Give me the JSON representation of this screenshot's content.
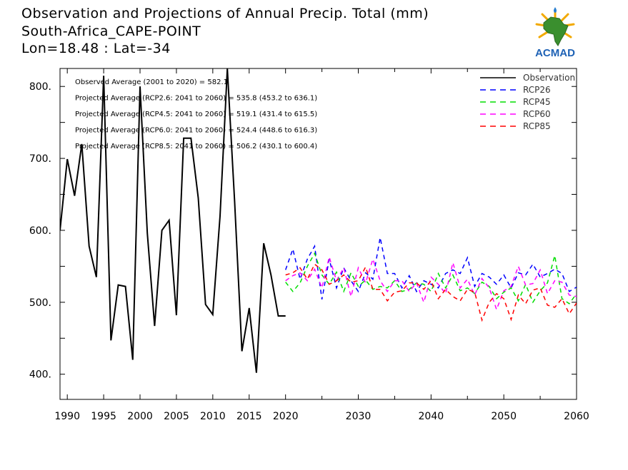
{
  "header": {
    "title": "Observation and Projections of Annual Precip. Total (mm)",
    "station": "South-Africa_CAPE-POINT",
    "location": "Lon=18.48 : Lat=-34"
  },
  "logo": {
    "text": "ACMAD"
  },
  "chart_data": {
    "type": "line",
    "title": "Observation and Projections of Annual Precip. Total (mm)",
    "xlabel": "",
    "ylabel": "",
    "xlim": [
      1989,
      2060
    ],
    "ylim": [
      365,
      825
    ],
    "x_ticks": [
      {
        "value": 1990,
        "label": "1990"
      },
      {
        "value": 1995,
        "label": "1995"
      },
      {
        "value": 2000,
        "label": "2000"
      },
      {
        "value": 2005,
        "label": "2005"
      },
      {
        "value": 2010,
        "label": "2010"
      },
      {
        "value": 2015,
        "label": "2015"
      },
      {
        "value": 2020,
        "label": "2020"
      },
      {
        "value": 2030,
        "label": "2030"
      },
      {
        "value": 2040,
        "label": "2040"
      },
      {
        "value": 2050,
        "label": "2050"
      },
      {
        "value": 2060,
        "label": "2060"
      }
    ],
    "y_ticks": [
      {
        "value": 400,
        "label": "400."
      },
      {
        "value": 500,
        "label": "500."
      },
      {
        "value": 600,
        "label": "600."
      },
      {
        "value": 700,
        "label": "700."
      },
      {
        "value": 800,
        "label": "800."
      }
    ],
    "legend_position": "top-right",
    "annotations": [
      "Observed Average (2001 to 2020) = 582.1",
      "Projected Average (RCP2.6: 2041 to 2060) = 535.8 (453.2 to 636.1)",
      "Projected Average (RCP4.5: 2041 to 2060) = 519.1 (431.4 to 615.5)",
      "Projected Average (RCP6.0: 2041 to 2060) = 524.4 (448.6 to 616.3)",
      "Projected Average (RCP8.5: 2041 to 2060) = 506.2 (430.1 to 600.4)"
    ],
    "series": [
      {
        "name": "Observation",
        "color": "#000000",
        "dashed": false,
        "x": [
          1989,
          1990,
          1991,
          1992,
          1993,
          1994,
          1995,
          1996,
          1997,
          1998,
          1999,
          2000,
          2001,
          2002,
          2003,
          2004,
          2005,
          2006,
          2007,
          2008,
          2009,
          2010,
          2011,
          2012,
          2013,
          2014,
          2015,
          2016,
          2017,
          2018,
          2019,
          2020
        ],
        "y": [
          600,
          699,
          648,
          720,
          578,
          535,
          815,
          447,
          524,
          522,
          420,
          800,
          596,
          467,
          600,
          614,
          482,
          728,
          728,
          645,
          497,
          483,
          620,
          825,
          640,
          432,
          492,
          402,
          582,
          538,
          481,
          481
        ]
      },
      {
        "name": "RCP26",
        "color": "#0000ff",
        "dashed": true,
        "x": [
          2020,
          2021,
          2022,
          2023,
          2024,
          2025,
          2026,
          2027,
          2028,
          2029,
          2030,
          2031,
          2032,
          2033,
          2034,
          2035,
          2036,
          2037,
          2038,
          2039,
          2040,
          2041,
          2042,
          2043,
          2044,
          2045,
          2046,
          2047,
          2048,
          2049,
          2050,
          2051,
          2052,
          2053,
          2054,
          2055,
          2056,
          2057,
          2058,
          2059,
          2060
        ],
        "y": [
          545,
          574,
          532,
          560,
          578,
          504,
          560,
          520,
          548,
          530,
          515,
          541,
          532,
          590,
          540,
          540,
          520,
          537,
          515,
          530,
          525,
          520,
          540,
          545,
          540,
          562,
          522,
          540,
          535,
          525,
          538,
          520,
          541,
          538,
          553,
          535,
          540,
          546,
          540,
          515,
          521
        ]
      },
      {
        "name": "RCP45",
        "color": "#00dd00",
        "dashed": true,
        "x": [
          2020,
          2021,
          2022,
          2023,
          2024,
          2025,
          2026,
          2027,
          2028,
          2029,
          2030,
          2031,
          2032,
          2033,
          2034,
          2035,
          2036,
          2037,
          2038,
          2039,
          2040,
          2041,
          2042,
          2043,
          2044,
          2045,
          2046,
          2047,
          2048,
          2049,
          2050,
          2051,
          2052,
          2053,
          2054,
          2055,
          2056,
          2057,
          2058,
          2059,
          2060
        ],
        "y": [
          528,
          515,
          527,
          550,
          568,
          538,
          525,
          542,
          515,
          541,
          522,
          531,
          518,
          522,
          520,
          530,
          515,
          518,
          527,
          525,
          515,
          540,
          520,
          538,
          516,
          520,
          512,
          528,
          522,
          505,
          514,
          520,
          502,
          525,
          500,
          516,
          527,
          565,
          505,
          498,
          512
        ]
      },
      {
        "name": "RCP60",
        "color": "#ff00ff",
        "dashed": true,
        "x": [
          2020,
          2021,
          2022,
          2023,
          2024,
          2025,
          2026,
          2027,
          2028,
          2029,
          2030,
          2031,
          2032,
          2033,
          2034,
          2035,
          2036,
          2037,
          2038,
          2039,
          2040,
          2041,
          2042,
          2043,
          2044,
          2045,
          2046,
          2047,
          2048,
          2049,
          2050,
          2051,
          2052,
          2053,
          2054,
          2055,
          2056,
          2057,
          2058,
          2059,
          2060
        ],
        "y": [
          530,
          537,
          541,
          530,
          546,
          520,
          563,
          530,
          548,
          508,
          548,
          527,
          560,
          530,
          515,
          530,
          530,
          515,
          527,
          500,
          535,
          525,
          512,
          555,
          520,
          532,
          510,
          533,
          520,
          490,
          516,
          522,
          550,
          524,
          526,
          545,
          512,
          530,
          528,
          510,
          508
        ]
      },
      {
        "name": "RCP85",
        "color": "#ff0000",
        "dashed": true,
        "x": [
          2020,
          2021,
          2022,
          2023,
          2024,
          2025,
          2026,
          2027,
          2028,
          2029,
          2030,
          2031,
          2032,
          2033,
          2034,
          2035,
          2036,
          2037,
          2038,
          2039,
          2040,
          2041,
          2042,
          2043,
          2044,
          2045,
          2046,
          2047,
          2048,
          2049,
          2050,
          2051,
          2052,
          2053,
          2054,
          2055,
          2056,
          2057,
          2058,
          2059,
          2060
        ],
        "y": [
          538,
          541,
          548,
          532,
          553,
          545,
          525,
          530,
          538,
          528,
          530,
          549,
          518,
          518,
          502,
          514,
          516,
          527,
          527,
          518,
          530,
          505,
          518,
          508,
          502,
          518,
          514,
          475,
          500,
          512,
          505,
          476,
          510,
          498,
          517,
          520,
          496,
          493,
          505,
          484,
          499
        ]
      }
    ]
  }
}
